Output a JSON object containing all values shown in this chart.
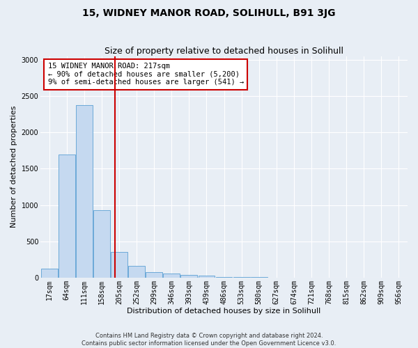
{
  "title": "15, WIDNEY MANOR ROAD, SOLIHULL, B91 3JG",
  "subtitle": "Size of property relative to detached houses in Solihull",
  "xlabel": "Distribution of detached houses by size in Solihull",
  "ylabel": "Number of detached properties",
  "footnote1": "Contains HM Land Registry data © Crown copyright and database right 2024.",
  "footnote2": "Contains public sector information licensed under the Open Government Licence v3.0.",
  "bin_labels": [
    "17sqm",
    "64sqm",
    "111sqm",
    "158sqm",
    "205sqm",
    "252sqm",
    "299sqm",
    "346sqm",
    "393sqm",
    "439sqm",
    "486sqm",
    "533sqm",
    "580sqm",
    "627sqm",
    "674sqm",
    "721sqm",
    "768sqm",
    "815sqm",
    "862sqm",
    "909sqm",
    "956sqm"
  ],
  "bar_values": [
    120,
    1700,
    2380,
    930,
    350,
    160,
    80,
    55,
    35,
    30,
    10,
    8,
    5,
    3,
    2,
    1,
    0,
    0,
    0,
    0,
    0
  ],
  "bar_color": "#c5d9f0",
  "bar_edge_color": "#5a9fd4",
  "ylim": [
    0,
    3050
  ],
  "yticks": [
    0,
    500,
    1000,
    1500,
    2000,
    2500,
    3000
  ],
  "annotation_text": "15 WIDNEY MANOR ROAD: 217sqm\n← 90% of detached houses are smaller (5,200)\n9% of semi-detached houses are larger (541) →",
  "annotation_box_color": "#ffffff",
  "annotation_box_edge_color": "#cc0000",
  "red_line_color": "#cc0000",
  "bg_color": "#e8eef5",
  "plot_bg_color": "#e8eef5",
  "grid_color": "#ffffff",
  "title_fontsize": 10,
  "subtitle_fontsize": 9,
  "axis_label_fontsize": 8,
  "tick_fontsize": 7,
  "annotation_fontsize": 7.5,
  "footnote_fontsize": 6
}
